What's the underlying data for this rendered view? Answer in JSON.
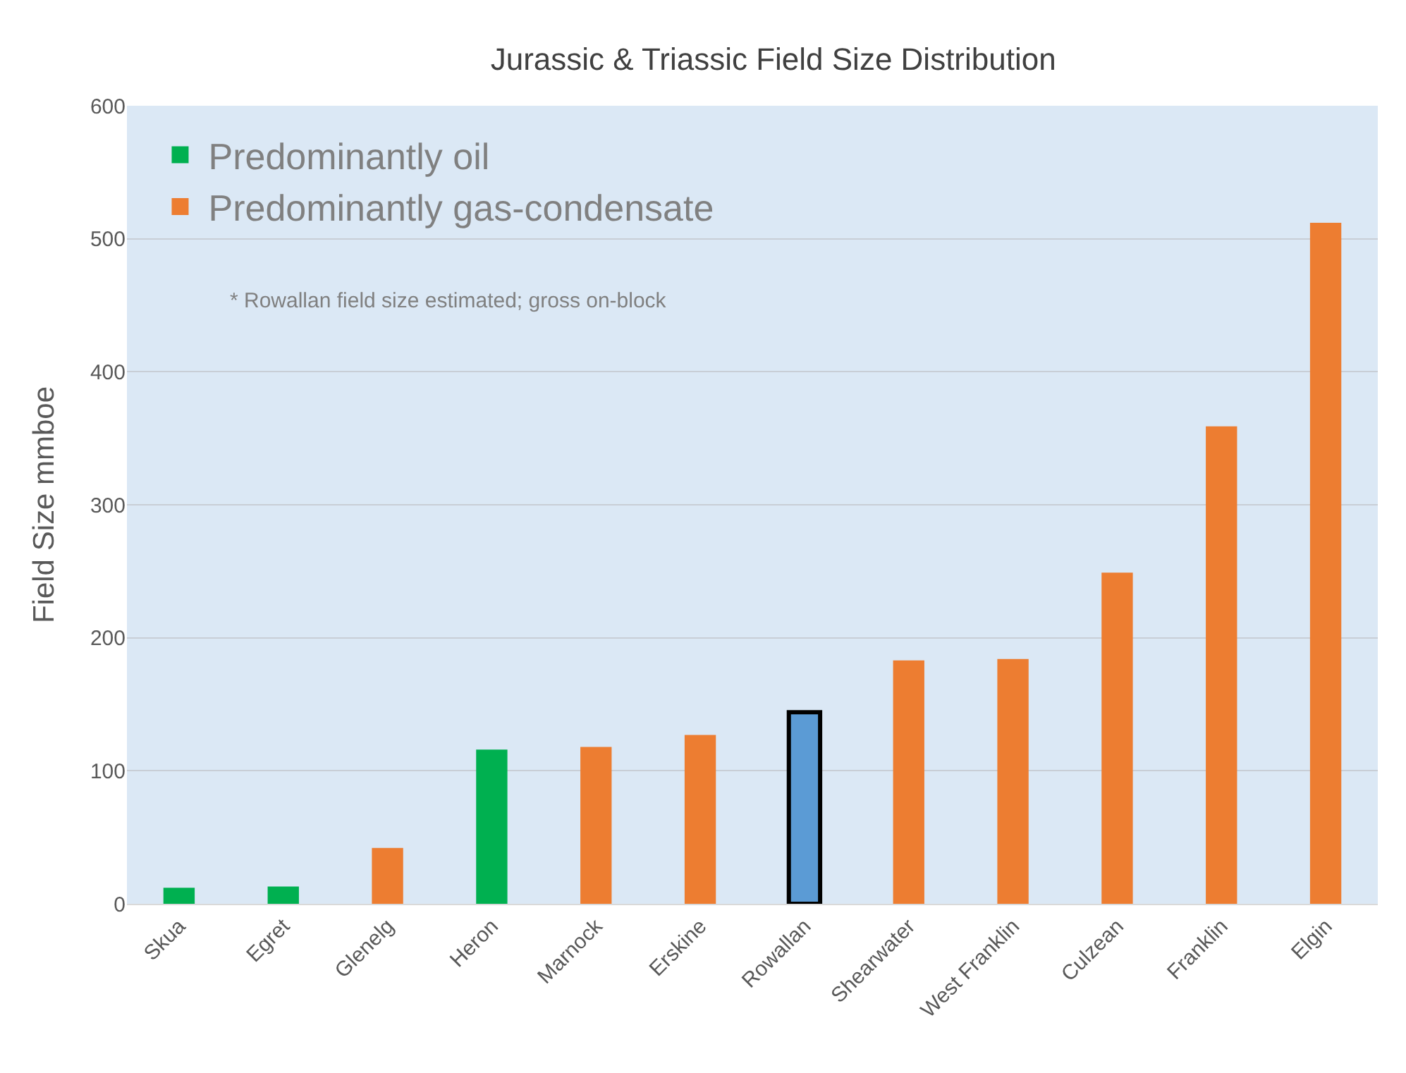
{
  "chart_data": {
    "type": "bar",
    "title": "Jurassic & Triassic Field Size Distribution",
    "ylabel": "Field Size mmboe",
    "categories": [
      "Skua",
      "Egret",
      "Glenelg",
      "Heron",
      "Marnock",
      "Erskine",
      "Rowallan",
      "Shearwater",
      "West Franklin",
      "Culzean",
      "Franklin",
      "Elgin"
    ],
    "series": [
      {
        "name": "Predominantly oil",
        "color": "#00b050",
        "values": [
          12,
          13,
          null,
          116,
          null,
          null,
          null,
          null,
          null,
          null,
          null,
          null
        ]
      },
      {
        "name": "Predominantly gas-condensate",
        "color": "#ed7d31",
        "values": [
          null,
          null,
          42,
          null,
          118,
          127,
          null,
          183,
          184,
          249,
          359,
          512
        ]
      },
      {
        "color": "#5b9bd5",
        "values": [
          null,
          null,
          null,
          null,
          null,
          null,
          144,
          null,
          null,
          null,
          null,
          null
        ]
      }
    ],
    "ylim": [
      0,
      600
    ],
    "yticks": [
      0,
      100,
      200,
      300,
      400,
      500,
      600
    ],
    "grid": "y",
    "legend": "top left",
    "annotations": [
      "* Rowallan field size estimated; gross on-block"
    ]
  }
}
